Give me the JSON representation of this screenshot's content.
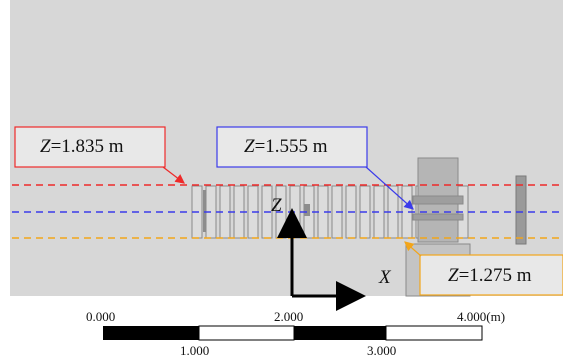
{
  "levels": [
    {
      "var": "Z",
      "value": "=1.835 m",
      "color": "#ee2a2a"
    },
    {
      "var": "Z",
      "value": "=1.555 m",
      "color": "#3b3bea"
    },
    {
      "var": "Z",
      "value": "=1.275 m",
      "color": "#f2a51a"
    }
  ],
  "axes": {
    "z_label": "Z",
    "x_label": "X"
  },
  "scale_bar": {
    "top_labels": [
      "0.000",
      "2.000",
      "4.000(m)"
    ],
    "bottom_labels": [
      "1.000",
      "3.000"
    ]
  },
  "colors": {
    "background": "#d7d7d7",
    "frame": "#bdbdbd",
    "panel": "#e6e6e6",
    "structure": "#b8b8b8"
  }
}
